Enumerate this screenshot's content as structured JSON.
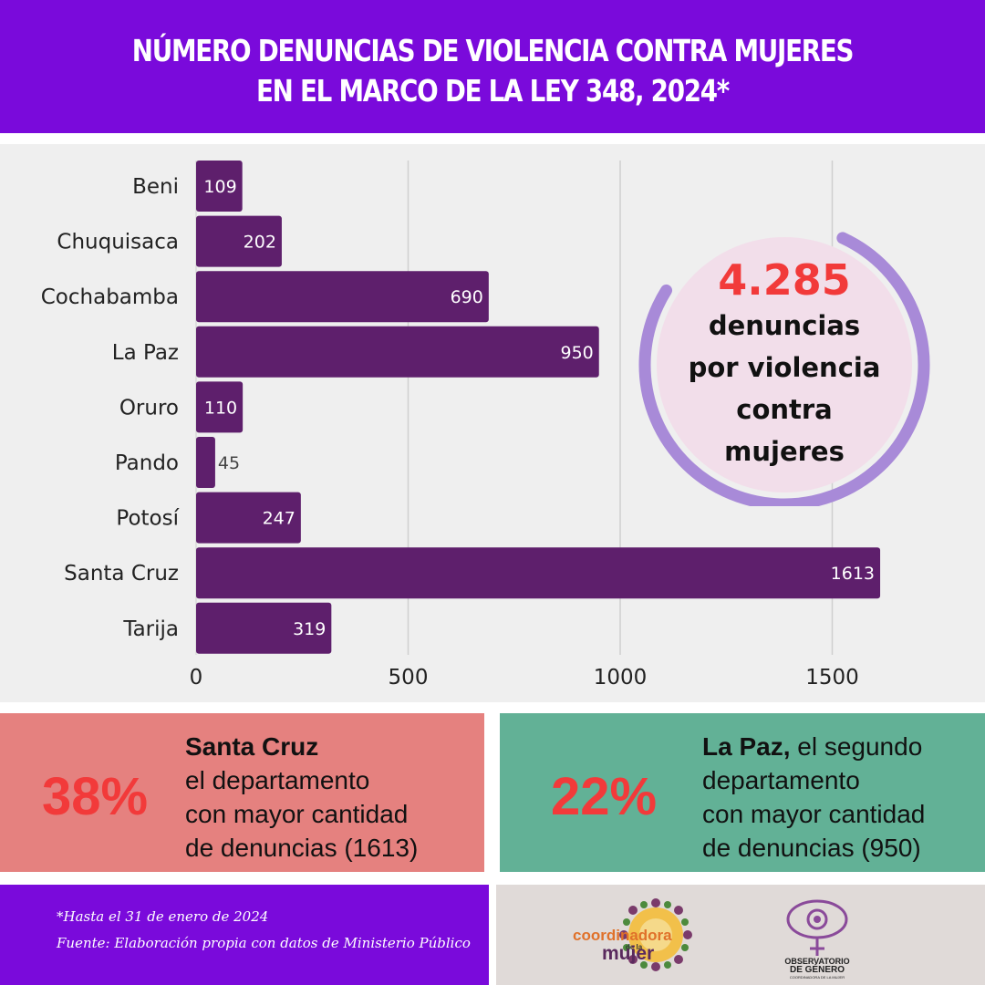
{
  "header": {
    "title_line1": "NÚMERO DENUNCIAS DE VIOLENCIA CONTRA MUJERES",
    "title_line2": "EN EL MARCO DE LA LEY 348, 2024*"
  },
  "chart_data": {
    "type": "bar",
    "orientation": "horizontal",
    "categories": [
      "Beni",
      "Chuquisaca",
      "Cochabamba",
      "La Paz",
      "Oruro",
      "Pando",
      "Potosí",
      "Santa Cruz",
      "Tarija"
    ],
    "values": [
      109,
      202,
      690,
      950,
      110,
      45,
      247,
      1613,
      319
    ],
    "xlim": [
      0,
      1700
    ],
    "xticks": [
      0,
      500,
      1000,
      1500
    ],
    "grid": true,
    "bar_color": "#5e1f6c",
    "title": "",
    "xlabel": "",
    "ylabel": ""
  },
  "total_callout": {
    "number": "4.285",
    "line1": "denuncias",
    "line2": "por violencia",
    "line3": "contra",
    "line4": "mujeres",
    "number_color": "#f23a3a",
    "ring_color": "#a88ad8",
    "fill_color": "#f2deea"
  },
  "cards": {
    "left": {
      "percent": "38%",
      "bold": "Santa Cruz",
      "line2": "el departamento",
      "line3": "con mayor cantidad",
      "line4": "de denuncias (1613)",
      "bg": "#e5817f"
    },
    "right": {
      "percent": "22%",
      "bold": "La Paz,",
      "line1_rest": " el segundo",
      "line2": "departamento",
      "line3": "con mayor cantidad",
      "line4": "de denuncias (950)",
      "bg": "#62b196"
    }
  },
  "footer": {
    "note1": "*Hasta el 31 de enero de 2024",
    "note2": "Fuente: Elaboración propia con datos de Ministerio Público",
    "logo1_coord": "coordinadora",
    "logo1_de": "de la",
    "logo1_mujer": "mujer",
    "logo2_line1": "OBSERVATORIO",
    "logo2_line2": "DE GÉNERO",
    "logo2_line3": "COORDINADORA DE LA MUJER"
  },
  "colors": {
    "header_bg": "#7a0adb",
    "panel_bg": "#efefef",
    "accent_red": "#f23a3a"
  }
}
